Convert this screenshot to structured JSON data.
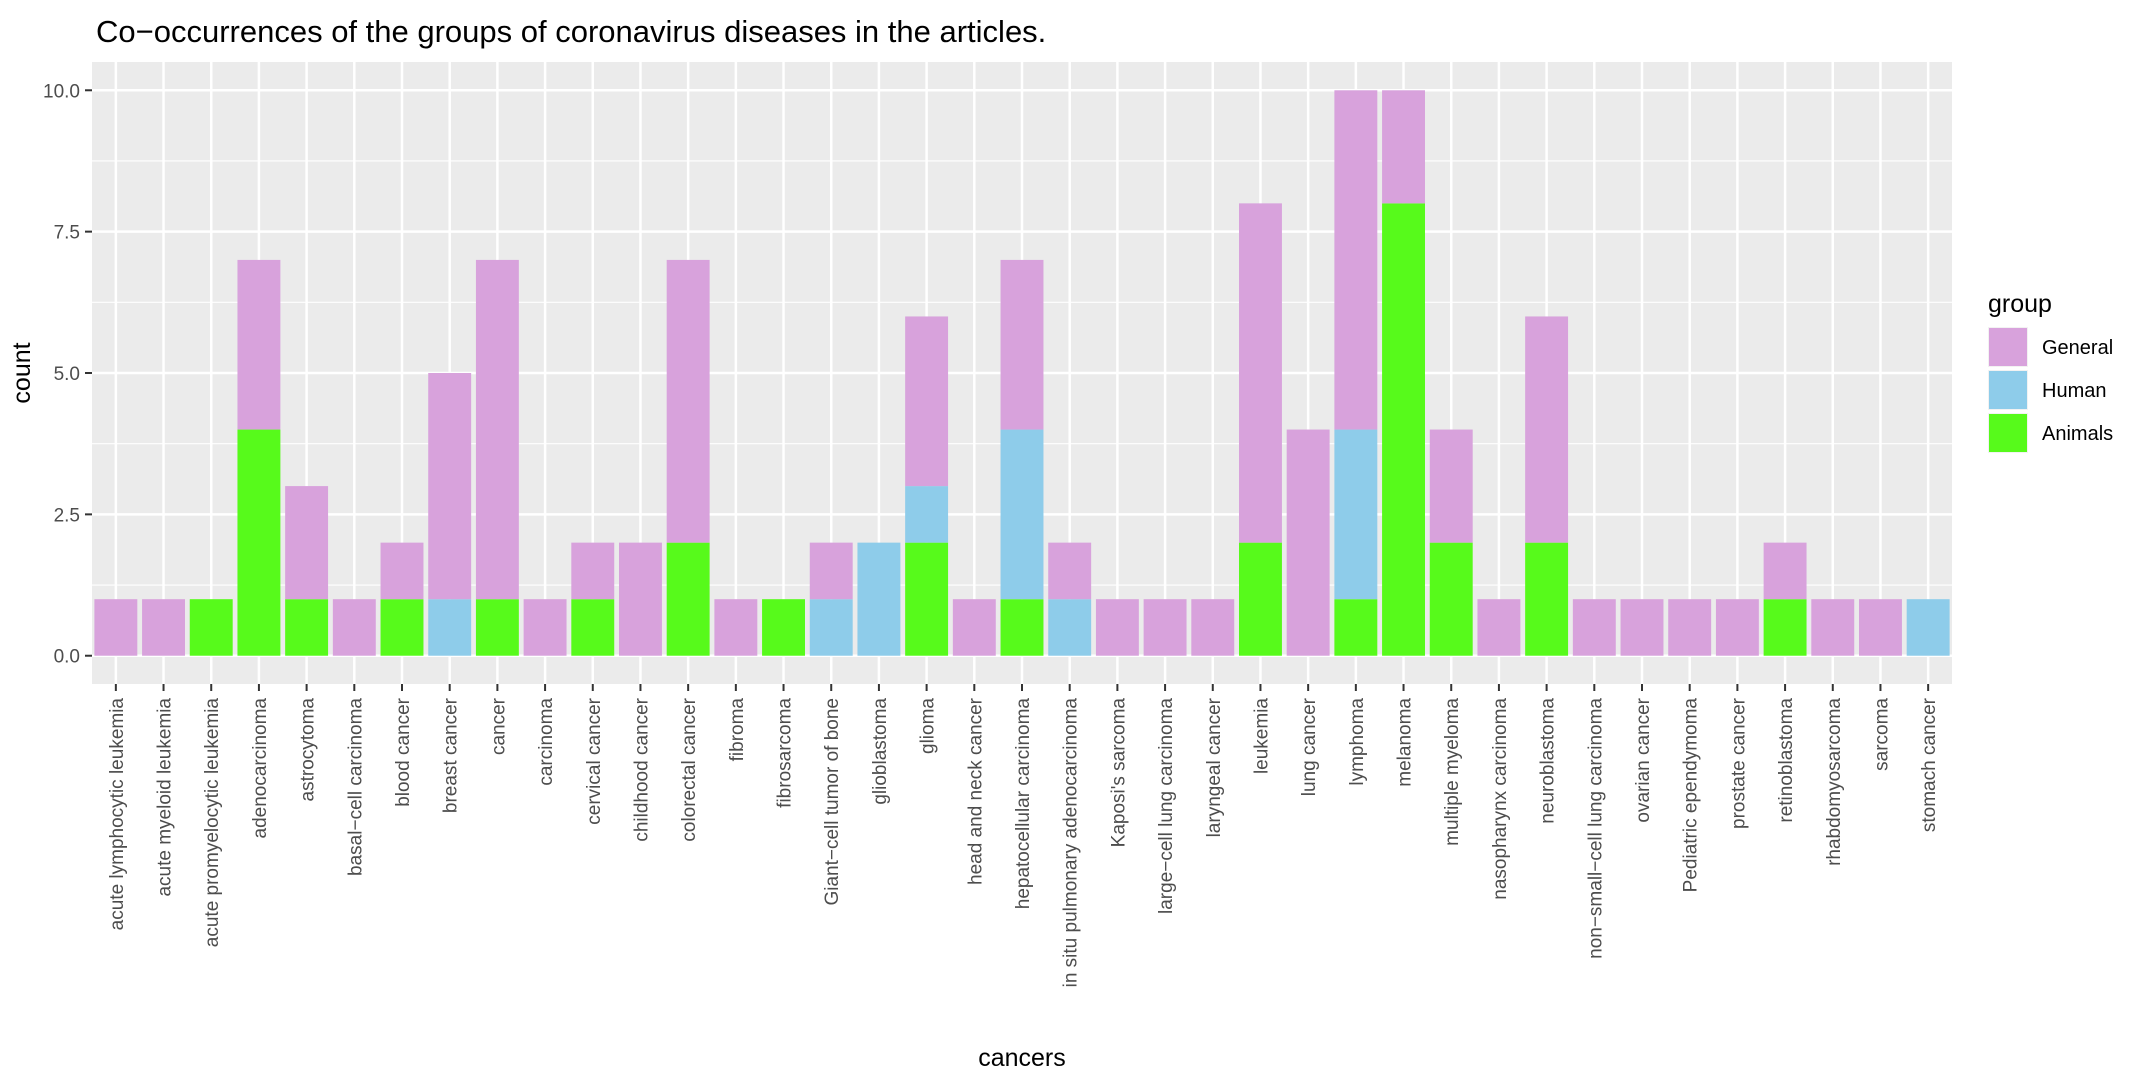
{
  "chart_data": {
    "type": "bar",
    "stacked": true,
    "title": "Co−occurrences of the groups of coronavirus diseases in the articles.",
    "xlabel": "cancers",
    "ylabel": "count",
    "ylim": [
      -0.5,
      10.5
    ],
    "yticks": [
      0.0,
      2.5,
      5.0,
      7.5,
      10.0
    ],
    "ytick_labels": [
      "0.0",
      "2.5",
      "5.0",
      "7.5",
      "10.0"
    ],
    "grid": true,
    "legend": {
      "title": "group",
      "position": "right"
    },
    "categories": [
      "acute lymphocytic leukemia",
      "acute myeloid leukemia",
      "acute promyelocytic leukemia",
      "adenocarcinoma",
      "astrocytoma",
      "basal−cell carcinoma",
      "blood cancer",
      "breast cancer",
      "cancer",
      "carcinoma",
      "cervical cancer",
      "childhood cancer",
      "colorectal cancer",
      "fibroma",
      "fibrosarcoma",
      "Giant−cell tumor of bone",
      "glioblastoma",
      "glioma",
      "head and neck cancer",
      "hepatocellular carcinoma",
      "in situ pulmonary adenocarcinoma",
      "Kaposi's sarcoma",
      "large−cell lung carcinoma",
      "laryngeal cancer",
      "leukemia",
      "lung cancer",
      "lymphoma",
      "melanoma",
      "multiple myeloma",
      "nasopharynx carcinoma",
      "neuroblastoma",
      "non−small−cell lung carcinoma",
      "ovarian cancer",
      "Pediatric ependymoma",
      "prostate cancer",
      "retinoblastoma",
      "rhabdomyosarcoma",
      "sarcoma",
      "stomach cancer"
    ],
    "series": [
      {
        "name": "General",
        "color": "#D8A2DC",
        "values": [
          1,
          1,
          0,
          3,
          2,
          1,
          1,
          4,
          6,
          1,
          1,
          2,
          5,
          1,
          0,
          1,
          0,
          3,
          1,
          3,
          1,
          1,
          1,
          1,
          6,
          4,
          6,
          2,
          2,
          1,
          4,
          1,
          1,
          1,
          1,
          1,
          1,
          1,
          0
        ]
      },
      {
        "name": "Human",
        "color": "#8ECCEA",
        "values": [
          0,
          0,
          0,
          0,
          0,
          0,
          0,
          1,
          0,
          0,
          0,
          0,
          0,
          0,
          0,
          1,
          2,
          1,
          0,
          3,
          1,
          0,
          0,
          0,
          0,
          0,
          3,
          0,
          0,
          0,
          0,
          0,
          0,
          0,
          0,
          0,
          0,
          0,
          1
        ]
      },
      {
        "name": "Animals",
        "color": "#57FA1B",
        "values": [
          0,
          0,
          1,
          4,
          1,
          0,
          1,
          0,
          1,
          0,
          1,
          0,
          2,
          0,
          1,
          0,
          0,
          2,
          0,
          1,
          0,
          0,
          0,
          0,
          2,
          0,
          1,
          8,
          2,
          0,
          2,
          0,
          0,
          0,
          0,
          1,
          0,
          0,
          0
        ]
      }
    ]
  }
}
